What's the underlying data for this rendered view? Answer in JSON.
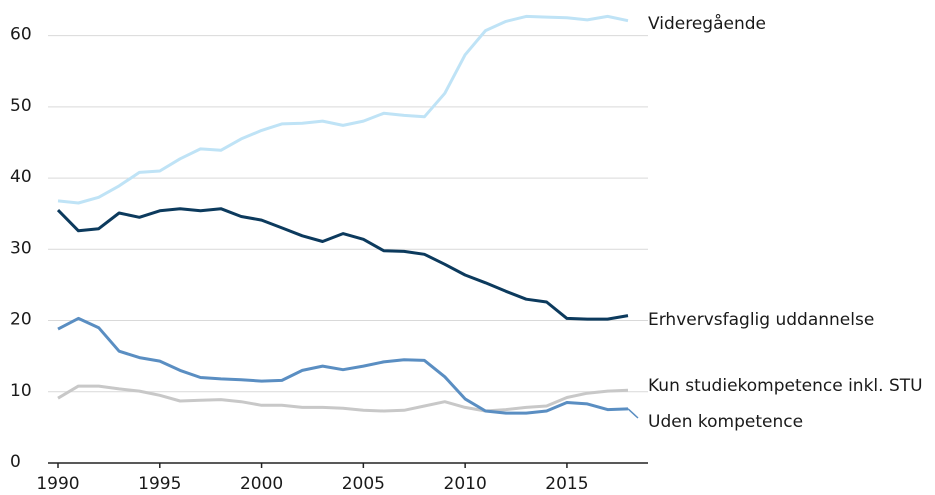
{
  "chart_data": {
    "type": "line",
    "x": [
      1990,
      1991,
      1992,
      1993,
      1994,
      1995,
      1996,
      1997,
      1998,
      1999,
      2000,
      2001,
      2002,
      2003,
      2004,
      2005,
      2006,
      2007,
      2008,
      2009,
      2010,
      2011,
      2012,
      2013,
      2014,
      2015,
      2016,
      2017,
      2018
    ],
    "xlim": [
      1990,
      2018
    ],
    "xticks": [
      1990,
      1995,
      2000,
      2005,
      2010,
      2015
    ],
    "ylim": [
      0,
      65
    ],
    "yticks": [
      0,
      10,
      20,
      30,
      40,
      50,
      60
    ],
    "grid": true,
    "series": [
      {
        "name": "Videregående",
        "color": "#bfe3f6",
        "values": [
          36.8,
          36.5,
          37.3,
          38.9,
          40.8,
          41.0,
          42.7,
          44.1,
          43.9,
          45.5,
          46.7,
          47.6,
          47.7,
          48.0,
          47.4,
          48.0,
          49.1,
          48.8,
          48.6,
          51.9,
          57.3,
          60.7,
          62.0,
          62.7,
          62.6,
          62.5,
          62.2,
          62.7,
          62.1
        ]
      },
      {
        "name": "Erhvervsfaglig uddannelse",
        "color": "#0c3a5d",
        "values": [
          35.5,
          32.6,
          32.9,
          35.1,
          34.5,
          35.4,
          35.7,
          35.4,
          35.7,
          34.6,
          34.1,
          33.0,
          31.9,
          31.1,
          32.2,
          31.4,
          29.8,
          29.7,
          29.3,
          27.9,
          26.4,
          25.3,
          24.1,
          23.0,
          22.6,
          20.3,
          20.2,
          20.2,
          20.7
        ]
      },
      {
        "name": "Kun studiekompetence inkl. STU",
        "color": "#c8c8c8",
        "values": [
          9.1,
          10.8,
          10.8,
          10.4,
          10.1,
          9.5,
          8.7,
          8.8,
          8.9,
          8.6,
          8.1,
          8.1,
          7.8,
          7.8,
          7.7,
          7.4,
          7.3,
          7.4,
          8.0,
          8.6,
          7.8,
          7.3,
          7.5,
          7.8,
          8.0,
          9.2,
          9.8,
          10.1,
          10.2
        ]
      },
      {
        "name": "Uden kompetence",
        "color": "#5a8ec2",
        "values": [
          18.8,
          20.3,
          19.0,
          15.7,
          14.8,
          14.3,
          13.0,
          12.0,
          11.8,
          11.7,
          11.5,
          11.6,
          13.0,
          13.6,
          13.1,
          13.6,
          14.2,
          14.5,
          14.4,
          12.1,
          9.0,
          7.3,
          7.0,
          7.0,
          7.3,
          8.5,
          8.3,
          7.5,
          7.6
        ]
      }
    ]
  }
}
